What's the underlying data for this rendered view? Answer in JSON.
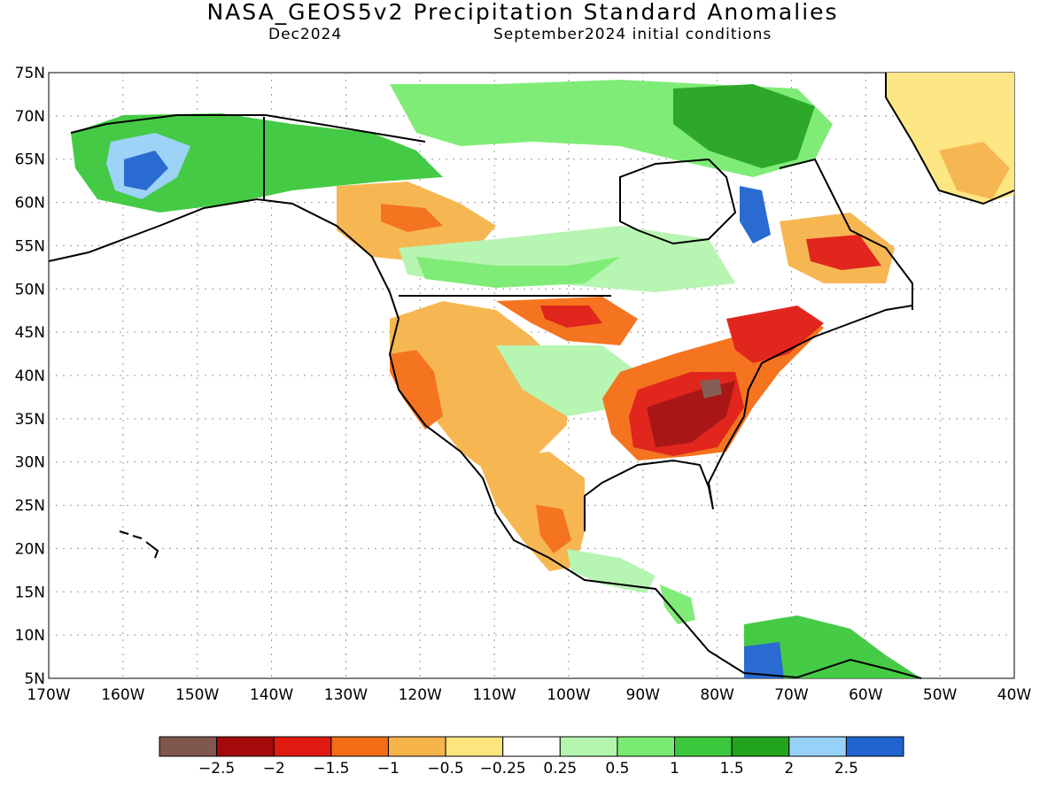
{
  "title": "NASA_GEOS5v2 Precipitation Standard Anomalies",
  "subtitle_left": "Dec2024",
  "subtitle_right": "September2024 initial conditions",
  "lat_ticks": [
    "75N",
    "70N",
    "65N",
    "60N",
    "55N",
    "50N",
    "45N",
    "40N",
    "35N",
    "30N",
    "25N",
    "20N",
    "15N",
    "10N",
    "5N"
  ],
  "lon_ticks": [
    "170W",
    "160W",
    "150W",
    "140W",
    "130W",
    "120W",
    "110W",
    "100W",
    "90W",
    "80W",
    "70W",
    "60W",
    "50W",
    "40W"
  ],
  "colorbar": {
    "labels": [
      "-2.5",
      "-2",
      "-1.5",
      "-1",
      "-0.5",
      "-0.25",
      "0.25",
      "0.5",
      "1",
      "1.5",
      "2",
      "2.5"
    ],
    "colors": [
      "#7f574c",
      "#a50a0a",
      "#e01b12",
      "#f56d14",
      "#f6b44a",
      "#fde57e",
      "#ffffff",
      "#b4f5ae",
      "#79eb70",
      "#3cc83c",
      "#22a41e",
      "#97d1f7",
      "#1f64d0"
    ]
  }
}
